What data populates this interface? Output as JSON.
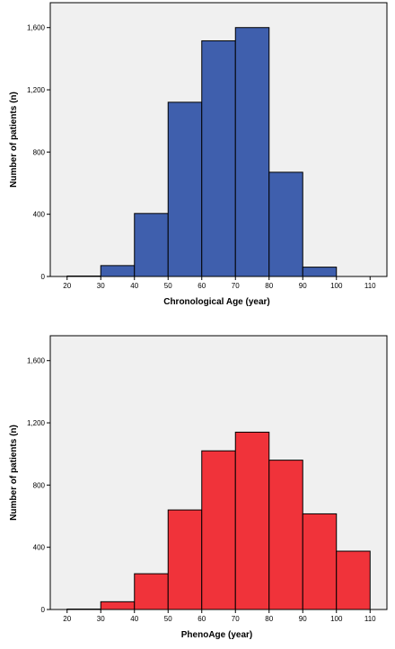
{
  "chart_data": [
    {
      "type": "bar",
      "xlabel": "Chronological Age (year)",
      "ylabel": "Number of patients (n)",
      "bar_color": "#3f5fad",
      "background": "#f0f0f0",
      "xlim": [
        15,
        115
      ],
      "ylim": [
        0,
        1760
      ],
      "xticks": [
        20,
        30,
        40,
        50,
        60,
        70,
        80,
        90,
        100,
        110
      ],
      "yticks": [
        0,
        400,
        800,
        1200,
        1600
      ],
      "ytick_labels": [
        "0",
        "400",
        "800",
        "1,200",
        "1,600"
      ],
      "bins": [
        {
          "x0": 20,
          "x1": 30,
          "value": 3
        },
        {
          "x0": 30,
          "x1": 40,
          "value": 70
        },
        {
          "x0": 40,
          "x1": 50,
          "value": 405
        },
        {
          "x0": 50,
          "x1": 60,
          "value": 1120
        },
        {
          "x0": 60,
          "x1": 70,
          "value": 1515
        },
        {
          "x0": 70,
          "x1": 80,
          "value": 1600
        },
        {
          "x0": 80,
          "x1": 90,
          "value": 670
        },
        {
          "x0": 90,
          "x1": 100,
          "value": 60
        }
      ]
    },
    {
      "type": "bar",
      "xlabel": "PhenoAge (year)",
      "ylabel": "Number of patients (n)",
      "bar_color": "#f0333a",
      "background": "#f0f0f0",
      "xlim": [
        15,
        115
      ],
      "ylim": [
        0,
        1760
      ],
      "xticks": [
        20,
        30,
        40,
        50,
        60,
        70,
        80,
        90,
        100,
        110
      ],
      "yticks": [
        0,
        400,
        800,
        1200,
        1600
      ],
      "ytick_labels": [
        "0",
        "400",
        "800",
        "1,200",
        "1,600"
      ],
      "bins": [
        {
          "x0": 20,
          "x1": 30,
          "value": 3
        },
        {
          "x0": 30,
          "x1": 40,
          "value": 50
        },
        {
          "x0": 40,
          "x1": 50,
          "value": 230
        },
        {
          "x0": 50,
          "x1": 60,
          "value": 640
        },
        {
          "x0": 60,
          "x1": 70,
          "value": 1020
        },
        {
          "x0": 70,
          "x1": 80,
          "value": 1140
        },
        {
          "x0": 80,
          "x1": 90,
          "value": 960
        },
        {
          "x0": 90,
          "x1": 100,
          "value": 615
        },
        {
          "x0": 100,
          "x1": 110,
          "value": 375
        }
      ]
    }
  ]
}
